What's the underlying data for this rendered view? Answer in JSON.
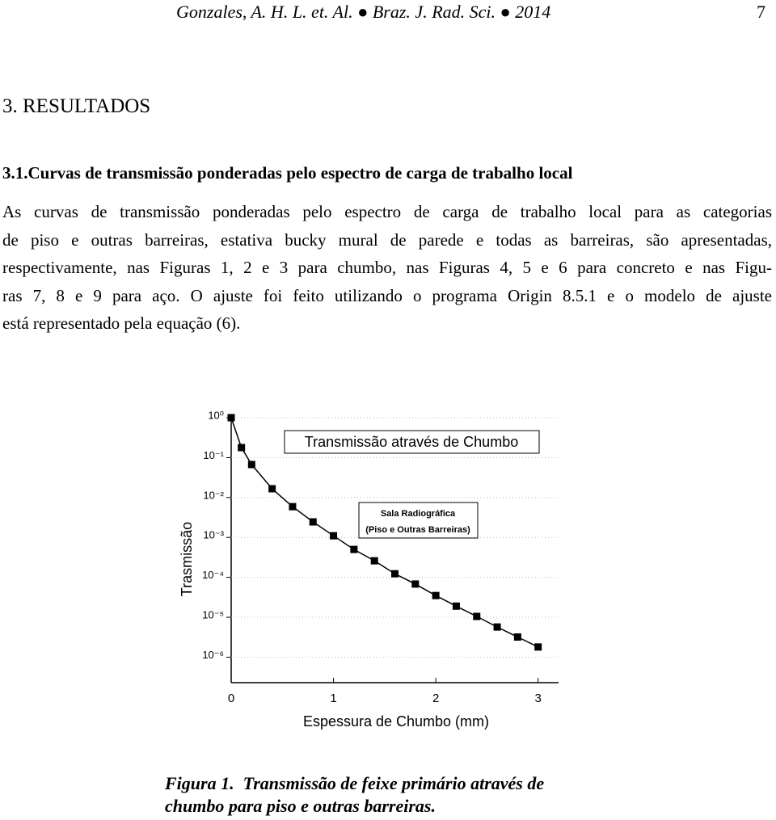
{
  "header": {
    "citation": "Gonzales, A. H. L. et. Al. ● Braz. J. Rad. Sci. ● 2014",
    "page": "7"
  },
  "section": "3. RESULTADOS",
  "subsection": "3.1.Curvas de transmissão ponderadas pelo espectro de carga de trabalho local",
  "paragraph": [
    "As curvas de transmissão ponderadas pelo espectro de carga de trabalho local para as categorias",
    "de piso e outras barreiras, estativa bucky mural de parede e todas as barreiras, são apresentadas,",
    "respectivamente, nas Figuras 1, 2 e 3 para chumbo, nas Figuras 4, 5 e 6 para concreto e nas Figu-",
    "ras 7, 8 e 9 para aço. O ajuste foi feito utilizando o programa Origin 8.5.1 e o modelo de ajuste",
    "está representado pela equação (6)."
  ],
  "chart_data": {
    "type": "scatter",
    "x_label": "Espessura de Chumbo (mm)",
    "y_label": "Trasmissão",
    "annotations": [
      "Transmissão através de Chumbo",
      "Sala Radiográfica",
      "(Piso e Outras Barreiras)"
    ],
    "log_y": true,
    "xlim": [
      0,
      3.2
    ],
    "ylim": [
      2.3e-07,
      1
    ],
    "xticks": [
      0,
      1,
      2,
      3
    ],
    "yticks": [
      {
        "value": 1,
        "label": "10⁰"
      },
      {
        "value": 0.1,
        "label": "10⁻¹"
      },
      {
        "value": 0.01,
        "label": "10⁻²"
      },
      {
        "value": 0.001,
        "label": "10⁻³"
      },
      {
        "value": 0.0001,
        "label": "10⁻⁴"
      },
      {
        "value": 1e-05,
        "label": "10⁻⁵"
      },
      {
        "value": 1e-06,
        "label": "10⁻⁶"
      }
    ],
    "series": [
      {
        "color": "#000000",
        "line": true,
        "x": [
          0,
          0.1,
          0.2,
          0.4,
          0.6,
          0.8,
          1.0,
          1.2,
          1.4,
          1.6,
          1.8,
          2.0,
          2.2,
          2.4,
          2.6,
          2.8,
          3.0
        ],
        "values": [
          1,
          0.178,
          0.067,
          0.0166,
          0.0059,
          0.00245,
          0.0011,
          0.0005,
          0.00026,
          0.000123,
          6.8e-05,
          3.5e-05,
          1.9e-05,
          1.05e-05,
          5.7e-06,
          3.2e-06,
          1.8e-06
        ]
      }
    ]
  },
  "caption": [
    "Figura 1.  Transmissão de feixe primário através de",
    "chumbo para piso e outras barreiras."
  ]
}
